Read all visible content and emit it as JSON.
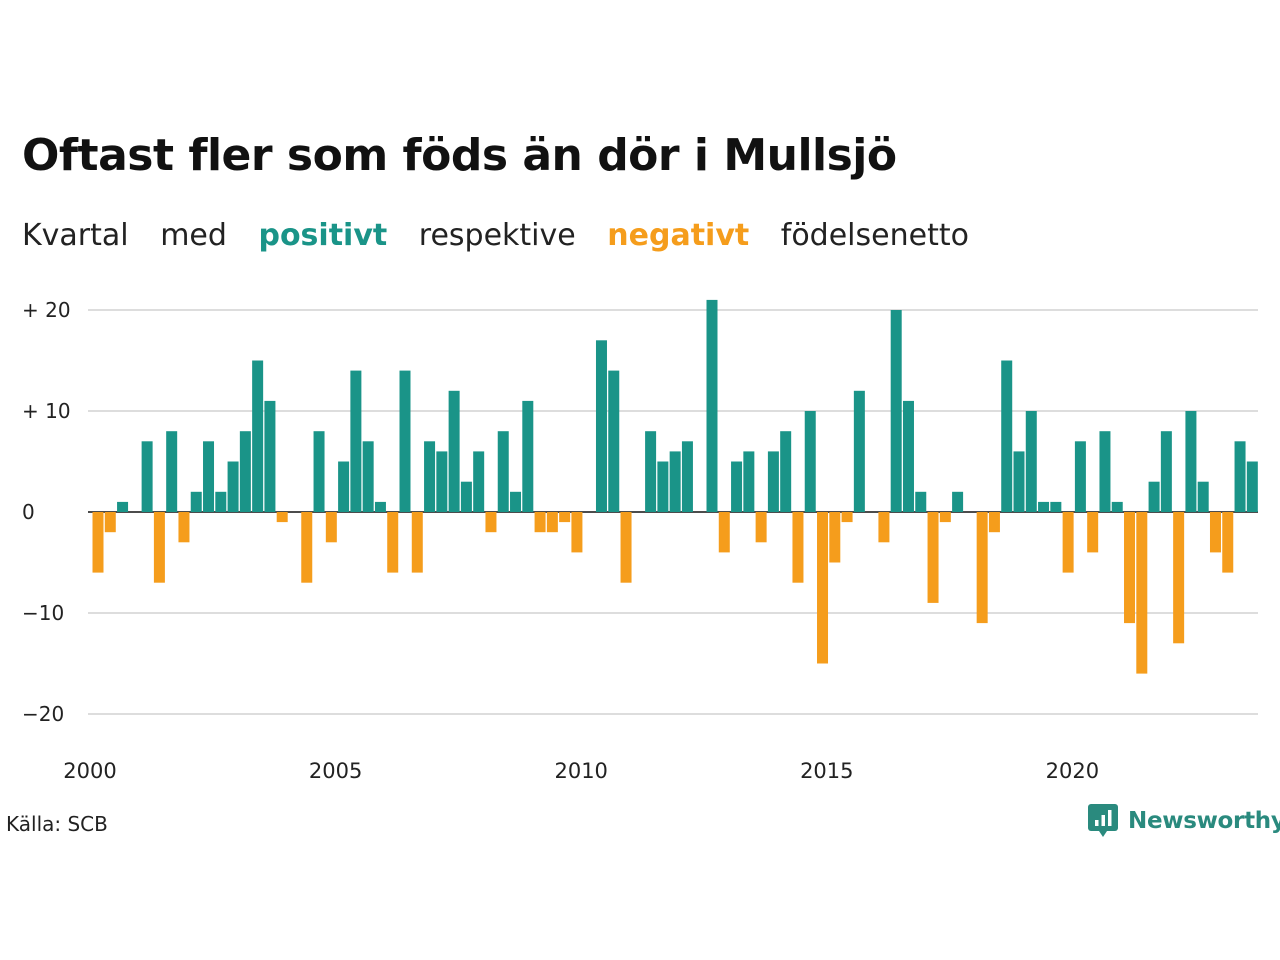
{
  "title": "Oftast fler som föds än dör i Mullsjö",
  "subtitle": {
    "w1": "Kvartal",
    "w2": "med",
    "positive_word": "positivt",
    "w3": "respektive",
    "negative_word": "negativt",
    "w4": "födelsenetto"
  },
  "source": "Källa: SCB",
  "brand": {
    "name": "Newsworthy",
    "icon": "newsworthy-logo-icon"
  },
  "colors": {
    "positive": "#1a9488",
    "negative": "#f59d1c",
    "grid": "#dddddd",
    "brand": "#2a8a7e"
  },
  "chart_data": {
    "type": "bar",
    "x_start": "2000 Q1",
    "x_ticks": [
      "2000",
      "2005",
      "2010",
      "2015",
      "2020"
    ],
    "y_ticks": [
      {
        "value": 20,
        "label": "+ 20"
      },
      {
        "value": 10,
        "label": "+ 10"
      },
      {
        "value": 0,
        "label": "0"
      },
      {
        "value": -10,
        "label": "−10"
      },
      {
        "value": -20,
        "label": "−20"
      }
    ],
    "ylim": [
      -22,
      21
    ],
    "grid": true,
    "values": [
      -6,
      -2,
      1,
      0,
      7,
      -7,
      8,
      -3,
      2,
      7,
      2,
      5,
      8,
      15,
      11,
      -1,
      0,
      -7,
      8,
      -3,
      5,
      14,
      7,
      1,
      -6,
      14,
      -6,
      7,
      6,
      12,
      3,
      6,
      -2,
      8,
      2,
      11,
      -2,
      -2,
      -1,
      -4,
      0,
      17,
      14,
      -7,
      0,
      8,
      5,
      6,
      7,
      0,
      21,
      -4,
      5,
      6,
      -3,
      6,
      8,
      -7,
      10,
      -15,
      -5,
      -1,
      12,
      0,
      -3,
      20,
      11,
      2,
      -9,
      -1,
      2,
      0,
      -11,
      -2,
      15,
      6,
      10,
      1,
      1,
      -6,
      7,
      -4,
      8,
      1,
      -11,
      -16,
      3,
      8,
      -13,
      10,
      3,
      -4,
      -6,
      7,
      5
    ]
  }
}
